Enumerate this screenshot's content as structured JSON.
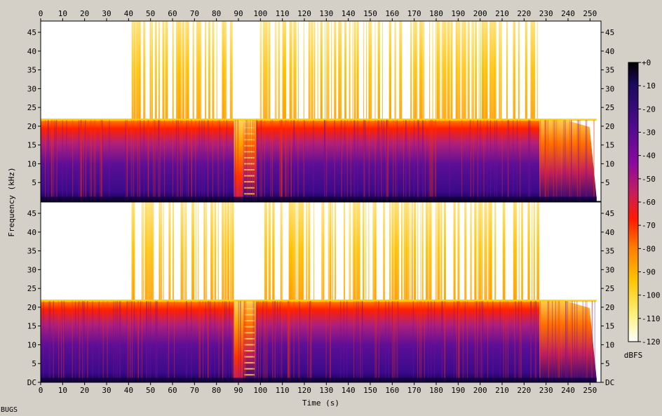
{
  "chart_data": {
    "type": "heatmap",
    "subtype": "spectrogram",
    "channels": 2,
    "xlabel": "Time (s)",
    "ylabel": "Frequency (kHz)",
    "colorbar_label": "dBFS",
    "x_range": [
      0,
      255
    ],
    "x_ticks": [
      0,
      10,
      20,
      30,
      40,
      50,
      60,
      70,
      80,
      90,
      100,
      110,
      120,
      130,
      140,
      150,
      160,
      170,
      180,
      190,
      200,
      210,
      220,
      230,
      240,
      250
    ],
    "y_range_khz": [
      0,
      48
    ],
    "y_ticks": [
      {
        "value": 0,
        "label": "DC"
      },
      {
        "value": 5,
        "label": "5"
      },
      {
        "value": 10,
        "label": "10"
      },
      {
        "value": 15,
        "label": "15"
      },
      {
        "value": 20,
        "label": "20"
      },
      {
        "value": 25,
        "label": "25"
      },
      {
        "value": 30,
        "label": "30"
      },
      {
        "value": 35,
        "label": "35"
      },
      {
        "value": 40,
        "label": "40"
      },
      {
        "value": 45,
        "label": "45"
      }
    ],
    "colorbar_ticks": [
      "+0",
      "-10",
      "-20",
      "-30",
      "-40",
      "-50",
      "-60",
      "-70",
      "-80",
      "-90",
      "-100",
      "-110",
      "-120"
    ],
    "colorbar_range_db": [
      -120,
      0
    ],
    "colormap": [
      "#000000",
      "#1a0a5c",
      "#4b0a8c",
      "#8a0aa0",
      "#c81e5a",
      "#ff1a00",
      "#ff7a00",
      "#ffc400",
      "#fff07a",
      "#ffffff"
    ],
    "segments": [
      {
        "start": 0,
        "end": 41,
        "cutoff_khz": 22,
        "level": "loud-intermittent"
      },
      {
        "start": 41,
        "end": 88,
        "cutoff_khz": 22,
        "level": "loud",
        "hf_transients": true
      },
      {
        "start": 88,
        "end": 92,
        "cutoff_khz": 22,
        "level": "quiet"
      },
      {
        "start": 92,
        "end": 98,
        "cutoff_khz": 22,
        "level": "banded"
      },
      {
        "start": 98,
        "end": 227,
        "cutoff_khz": 22,
        "level": "loud",
        "hf_transients": true
      },
      {
        "start": 227,
        "end": 237,
        "cutoff_khz": 22,
        "level": "fading"
      },
      {
        "start": 237,
        "end": 253,
        "cutoff_khz": 22,
        "level": "fade-out"
      }
    ]
  },
  "footer_text": "BUGS"
}
